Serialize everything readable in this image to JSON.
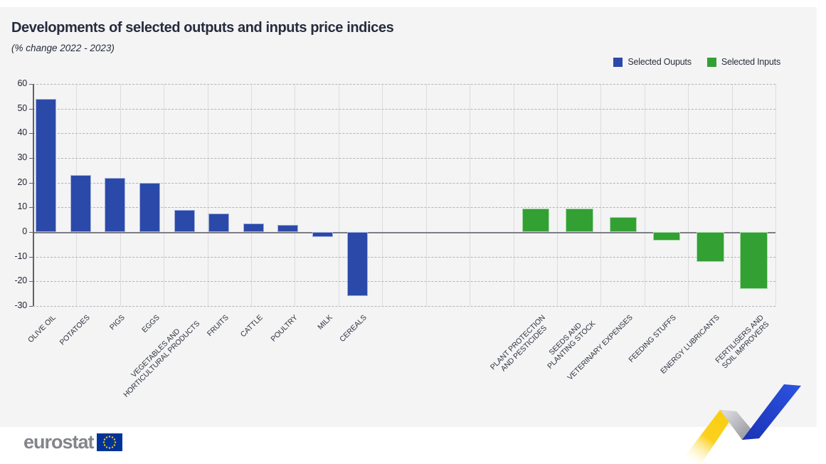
{
  "header": {
    "title": "Developments of selected outputs and inputs price indices",
    "subtitle": "(% change 2022 - 2023)"
  },
  "legend": [
    {
      "label": "Selected Ouputs",
      "color": "#2b49a8"
    },
    {
      "label": "Selected Inputs",
      "color": "#33a033"
    }
  ],
  "chart_data": {
    "type": "bar",
    "title": "Developments of selected outputs and inputs price indices",
    "subtitle": "(% change 2022 - 2023)",
    "xlabel": "",
    "ylabel": "",
    "ylim": [
      -30,
      60
    ],
    "yticks": [
      60,
      50,
      40,
      30,
      20,
      10,
      0,
      -10,
      -20,
      -30
    ],
    "grid": {
      "horizontal": "dashed",
      "vertical": "solid"
    },
    "legend_position": "top-right",
    "series": [
      {
        "name": "Selected Ouputs",
        "color": "#2b49a8",
        "points": [
          {
            "lines": [
              "OLIVE OIL"
            ],
            "value": 54
          },
          {
            "lines": [
              "POTATOES"
            ],
            "value": 23
          },
          {
            "lines": [
              "PIGS"
            ],
            "value": 22
          },
          {
            "lines": [
              "EGGS"
            ],
            "value": 20
          },
          {
            "lines": [
              "VEGETABLES AND",
              "HORTICULTURAL PRODUCTS"
            ],
            "value": 9
          },
          {
            "lines": [
              "FRUITS"
            ],
            "value": 7.5
          },
          {
            "lines": [
              "CATTLE"
            ],
            "value": 3.5
          },
          {
            "lines": [
              "POULTRY"
            ],
            "value": 3
          },
          {
            "lines": [
              "MILK"
            ],
            "value": -2
          },
          {
            "lines": [
              "CEREALS"
            ],
            "value": -26
          }
        ]
      },
      {
        "name": "Selected Inputs",
        "color": "#33a033",
        "points": [
          {
            "lines": [
              "PLANT PROTECTION",
              "AND PESTICIDES"
            ],
            "value": 9.5
          },
          {
            "lines": [
              "SEEDS AND",
              "PLANTING STOCK"
            ],
            "value": 9.5
          },
          {
            "lines": [
              "VETERINARY EXPENSES"
            ],
            "value": 6
          },
          {
            "lines": [
              "FEEDING STUFFS"
            ],
            "value": -3.5
          },
          {
            "lines": [
              "ENERGY LUBRICANTS"
            ],
            "value": -12
          },
          {
            "lines": [
              "FERTILISERS AND",
              "SOIL IMPROVERS"
            ],
            "value": -23
          }
        ]
      }
    ]
  },
  "footer": {
    "logo_text": "eurostat"
  },
  "decor": {
    "ribbon_yellow": "#fcd11e",
    "ribbon_gray": "#9b9ba3",
    "ribbon_blue": "#2446c8",
    "flag_blue": "#003399",
    "flag_star": "#ffcc00"
  }
}
